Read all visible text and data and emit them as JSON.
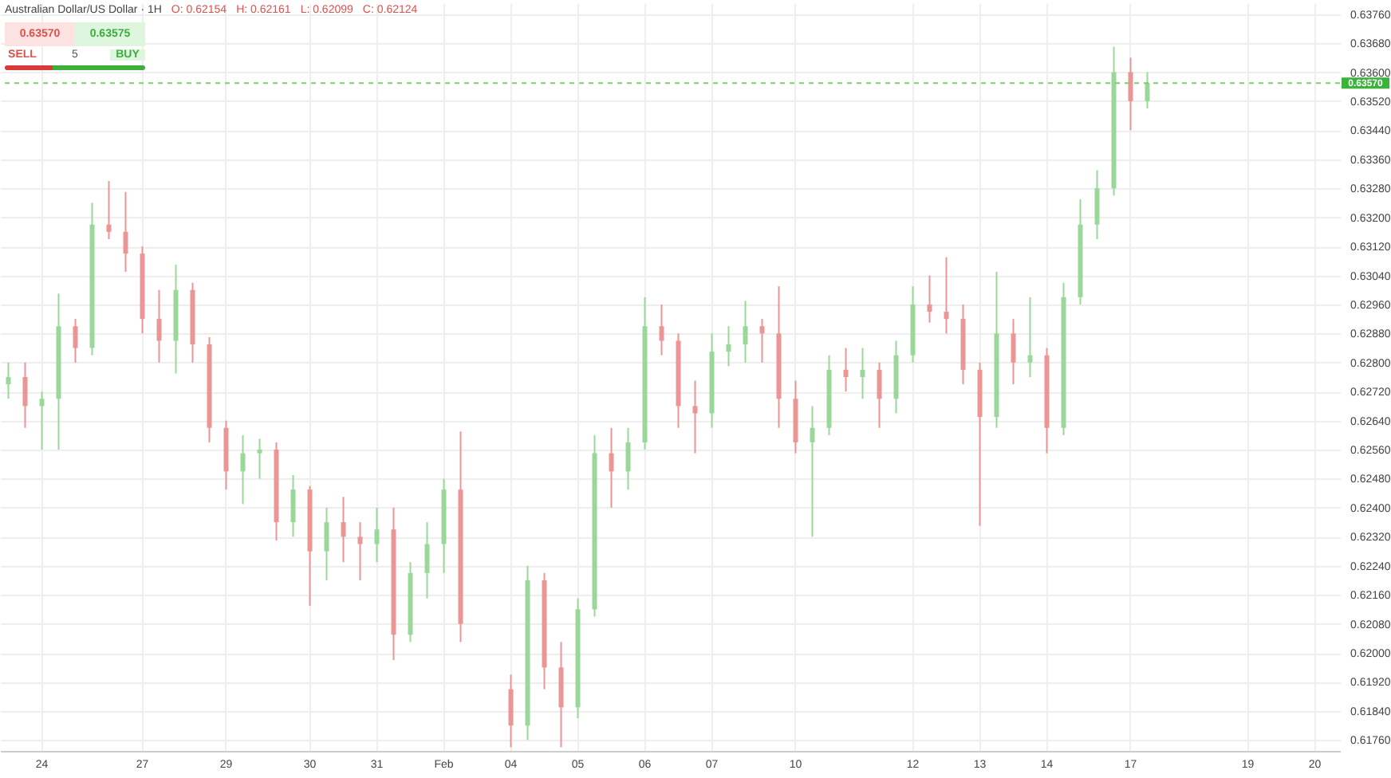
{
  "chart_data": {
    "type": "candlestick",
    "title": "Australian Dollar/US Dollar · 1H",
    "annotations": [
      "O: 0.62154",
      "H: 0.62161",
      "L: 0.62099",
      "C: 0.62124",
      "0.63570",
      "0.63575",
      "SELL",
      "5",
      "BUY"
    ],
    "categories": [
      null,
      null,
      "24",
      null,
      null,
      null,
      null,
      null,
      "27",
      null,
      null,
      null,
      null,
      "29",
      null,
      null,
      null,
      null,
      "30",
      null,
      null,
      null,
      "31",
      null,
      null,
      null,
      "Feb",
      null,
      null,
      null,
      "04",
      null,
      null,
      null,
      "05",
      null,
      null,
      null,
      "06",
      null,
      null,
      null,
      "07",
      null,
      null,
      null,
      null,
      "10",
      null,
      null,
      null,
      null,
      null,
      null,
      "12",
      null,
      null,
      null,
      "13",
      null,
      null,
      null,
      "14",
      null,
      null,
      null,
      null,
      "17",
      null,
      null,
      null,
      null,
      null,
      null,
      "19",
      null,
      null,
      null,
      "20",
      null
    ],
    "ohlc": [
      [
        0.6274,
        0.628,
        0.627,
        0.6276
      ],
      [
        0.6276,
        0.628,
        0.6262,
        0.6268
      ],
      [
        0.6268,
        0.6272,
        0.6256,
        0.627
      ],
      [
        0.627,
        0.6299,
        0.6256,
        0.629
      ],
      [
        0.629,
        0.6292,
        0.628,
        0.6284
      ],
      [
        0.6284,
        0.6324,
        0.6282,
        0.6318
      ],
      [
        0.6318,
        0.633,
        0.6314,
        0.6316
      ],
      [
        0.6316,
        0.6327,
        0.6305,
        0.631
      ],
      [
        0.631,
        0.6312,
        0.6288,
        0.6292
      ],
      [
        0.6292,
        0.63,
        0.628,
        0.6286
      ],
      [
        0.6286,
        0.6307,
        0.6277,
        0.63
      ],
      [
        0.63,
        0.6302,
        0.628,
        0.6285
      ],
      [
        0.6285,
        0.6287,
        0.6258,
        0.6262
      ],
      [
        0.6262,
        0.6264,
        0.6245,
        0.625
      ],
      [
        0.625,
        0.626,
        0.6241,
        0.6255
      ],
      [
        0.6255,
        0.6259,
        0.6248,
        0.6256
      ],
      [
        0.6256,
        0.6258,
        0.6231,
        0.6236
      ],
      [
        0.6236,
        0.6249,
        0.6232,
        0.6245
      ],
      [
        0.6245,
        0.6246,
        0.6213,
        0.6228
      ],
      [
        0.6228,
        0.624,
        0.622,
        0.6236
      ],
      [
        0.6236,
        0.6243,
        0.6225,
        0.6232
      ],
      [
        0.6232,
        0.6236,
        0.622,
        0.623
      ],
      [
        0.623,
        0.624,
        0.6225,
        0.6234
      ],
      [
        0.6234,
        0.624,
        0.6198,
        0.6205
      ],
      [
        0.6205,
        0.6225,
        0.6203,
        0.6222
      ],
      [
        0.6222,
        0.6236,
        0.6215,
        0.623
      ],
      [
        0.623,
        0.6248,
        0.6222,
        0.6245
      ],
      [
        0.6245,
        0.6261,
        0.6203,
        0.6208
      ],
      null,
      null,
      [
        0.619,
        0.6194,
        0.6174,
        0.618
      ],
      [
        0.618,
        0.6224,
        0.6176,
        0.622
      ],
      [
        0.622,
        0.6222,
        0.619,
        0.6196
      ],
      [
        0.6196,
        0.6203,
        0.6174,
        0.6185
      ],
      [
        0.6185,
        0.6215,
        0.6182,
        0.6212
      ],
      [
        0.6212,
        0.626,
        0.621,
        0.6255
      ],
      [
        0.6255,
        0.6262,
        0.624,
        0.625
      ],
      [
        0.625,
        0.6262,
        0.6245,
        0.6258
      ],
      [
        0.6258,
        0.6298,
        0.6256,
        0.629
      ],
      [
        0.629,
        0.6296,
        0.6282,
        0.6286
      ],
      [
        0.6286,
        0.6288,
        0.6262,
        0.6268
      ],
      [
        0.6268,
        0.6275,
        0.6255,
        0.6266
      ],
      [
        0.6266,
        0.6288,
        0.6262,
        0.6283
      ],
      [
        0.6283,
        0.629,
        0.6279,
        0.6285
      ],
      [
        0.6285,
        0.6297,
        0.628,
        0.629
      ],
      [
        0.629,
        0.6292,
        0.628,
        0.6288
      ],
      [
        0.6288,
        0.6301,
        0.6262,
        0.627
      ],
      [
        0.627,
        0.6275,
        0.6255,
        0.6258
      ],
      [
        0.6258,
        0.6268,
        0.6232,
        0.6262
      ],
      [
        0.6262,
        0.6282,
        0.626,
        0.6278
      ],
      [
        0.6278,
        0.6284,
        0.6272,
        0.6276
      ],
      [
        0.6276,
        0.6284,
        0.627,
        0.6278
      ],
      [
        0.6278,
        0.628,
        0.6262,
        0.627
      ],
      [
        0.627,
        0.6286,
        0.6266,
        0.6282
      ],
      [
        0.6282,
        0.6301,
        0.628,
        0.6296
      ],
      [
        0.6296,
        0.6304,
        0.6291,
        0.6294
      ],
      [
        0.6294,
        0.6309,
        0.6288,
        0.6292
      ],
      [
        0.6292,
        0.6296,
        0.6274,
        0.6278
      ],
      [
        0.6278,
        0.628,
        0.6235,
        0.6265
      ],
      [
        0.6265,
        0.6305,
        0.6262,
        0.6288
      ],
      [
        0.6288,
        0.6292,
        0.6274,
        0.628
      ],
      [
        0.628,
        0.6298,
        0.6276,
        0.6282
      ],
      [
        0.6282,
        0.6284,
        0.6255,
        0.6262
      ],
      [
        0.6262,
        0.6302,
        0.626,
        0.6298
      ],
      [
        0.6298,
        0.6325,
        0.6296,
        0.6318
      ],
      [
        0.6318,
        0.6333,
        0.6314,
        0.6328
      ],
      [
        0.6328,
        0.6367,
        0.6326,
        0.636
      ],
      [
        0.636,
        0.6364,
        0.6344,
        0.6352
      ],
      [
        0.6352,
        0.636,
        0.635,
        0.6357
      ],
      null,
      null,
      null,
      null,
      null,
      null,
      null,
      null,
      null,
      null,
      null
    ],
    "colors": [
      "#9ad89a",
      "#eb9595",
      "#9ad89a",
      "#9ad89a",
      "#eb9595",
      "#9ad89a",
      "#eb9595",
      "#eb9595",
      "#eb9595",
      "#eb9595",
      "#9ad89a",
      "#eb9595",
      "#eb9595",
      "#eb9595",
      "#9ad89a",
      "#9ad89a",
      "#eb9595",
      "#9ad89a",
      "#eb9595",
      "#9ad89a",
      "#eb9595",
      "#eb9595",
      "#9ad89a",
      "#eb9595",
      "#9ad89a",
      "#9ad89a",
      "#9ad89a",
      "#eb9595",
      null,
      null,
      "#eb9595",
      "#9ad89a",
      "#eb9595",
      "#eb9595",
      "#9ad89a",
      "#9ad89a",
      "#eb9595",
      "#9ad89a",
      "#9ad89a",
      "#eb9595",
      "#eb9595",
      "#eb9595",
      "#9ad89a",
      "#9ad89a",
      "#9ad89a",
      "#eb9595",
      "#eb9595",
      "#eb9595",
      "#9ad89a",
      "#9ad89a",
      "#eb9595",
      "#9ad89a",
      "#eb9595",
      "#9ad89a",
      "#9ad89a",
      "#eb9595",
      "#eb9595",
      "#eb9595",
      "#eb9595",
      "#9ad89a",
      "#eb9595",
      "#9ad89a",
      "#eb9595",
      "#9ad89a",
      "#9ad89a",
      "#9ad89a",
      "#9ad89a",
      "#eb9595",
      "#9ad89a",
      null,
      null,
      null,
      null,
      null,
      null,
      null,
      null,
      null,
      null,
      null
    ],
    "ylim": [
      0.6173,
      0.6379
    ],
    "yticks": [
      {
        "value": 0.6176,
        "label": "0.61760"
      },
      {
        "value": 0.6184,
        "label": "0.61840"
      },
      {
        "value": 0.6192,
        "label": "0.61920"
      },
      {
        "value": 0.62,
        "label": "0.62000"
      },
      {
        "value": 0.6208,
        "label": "0.62080"
      },
      {
        "value": 0.6216,
        "label": "0.62160"
      },
      {
        "value": 0.6224,
        "label": "0.62240"
      },
      {
        "value": 0.6232,
        "label": "0.62320"
      },
      {
        "value": 0.624,
        "label": "0.62400"
      },
      {
        "value": 0.6248,
        "label": "0.62480"
      },
      {
        "value": 0.6256,
        "label": "0.62560"
      },
      {
        "value": 0.6264,
        "label": "0.62640"
      },
      {
        "value": 0.6272,
        "label": "0.62720"
      },
      {
        "value": 0.628,
        "label": "0.62800"
      },
      {
        "value": 0.6288,
        "label": "0.62880"
      },
      {
        "value": 0.6296,
        "label": "0.62960"
      },
      {
        "value": 0.6304,
        "label": "0.63040"
      },
      {
        "value": 0.6312,
        "label": "0.63120"
      },
      {
        "value": 0.632,
        "label": "0.63200"
      },
      {
        "value": 0.6328,
        "label": "0.63280"
      },
      {
        "value": 0.6336,
        "label": "0.63360"
      },
      {
        "value": 0.6344,
        "label": "0.63440"
      },
      {
        "value": 0.6352,
        "label": "0.63520"
      },
      {
        "value": 0.636,
        "label": "0.63600"
      },
      {
        "value": 0.6368,
        "label": "0.63680"
      },
      {
        "value": 0.6376,
        "label": "0.63760"
      }
    ],
    "ref_lines": [
      {
        "axis": "y",
        "value": 0.6357,
        "label": "0.63570",
        "color": "#7cd06e",
        "line_style": "dashed"
      }
    ],
    "grid": true
  }
}
